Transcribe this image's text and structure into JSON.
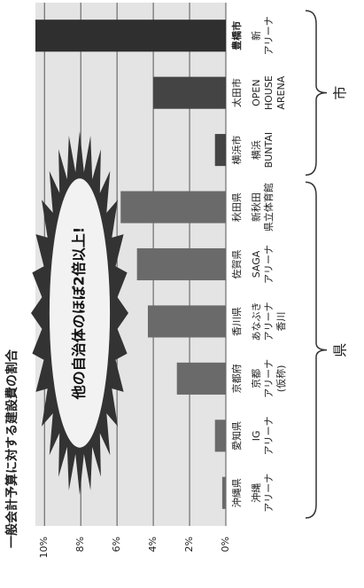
{
  "chart_data": {
    "type": "bar",
    "title": "一般会計予算に対する建設費の割合",
    "categories": [
      "沖縄県",
      "愛知県",
      "京都府",
      "香川県",
      "佐賀県",
      "秋田県",
      "横浜市",
      "太田市",
      "豊橋市"
    ],
    "arenas": [
      [
        "沖縄",
        "アリーナ"
      ],
      [
        "IG",
        "アリーナ"
      ],
      [
        "京都",
        "アリーナ",
        "(仮称)"
      ],
      [
        "あなぶき",
        "アリーナ",
        "香川"
      ],
      [
        "SAGA",
        "アリーナ"
      ],
      [
        "新秋田",
        "県立体育館"
      ],
      [
        "横浜",
        "BUNTAI"
      ],
      [
        "OPEN",
        "HOUSE",
        "ARENA"
      ],
      [
        "新",
        "アリーナ"
      ]
    ],
    "values": [
      0.2,
      0.6,
      2.7,
      4.3,
      4.9,
      5.8,
      0.6,
      4.0,
      10.5
    ],
    "colors": [
      "#6a6a6a",
      "#6a6a6a",
      "#6a6a6a",
      "#6a6a6a",
      "#6a6a6a",
      "#6a6a6a",
      "#444444",
      "#444444",
      "#2f2f2f"
    ],
    "ylim": [
      0,
      10.5
    ],
    "yticks": [
      {
        "value": 0,
        "label": "0%"
      },
      {
        "value": 2,
        "label": "2%"
      },
      {
        "value": 4,
        "label": "4%"
      },
      {
        "value": 6,
        "label": "6%"
      },
      {
        "value": 8,
        "label": "8%"
      },
      {
        "value": 10,
        "label": "10%"
      }
    ],
    "grid": true,
    "annotation": "他の自治体のほぼ2倍以上!",
    "group_labels": [
      "県",
      "市"
    ]
  }
}
